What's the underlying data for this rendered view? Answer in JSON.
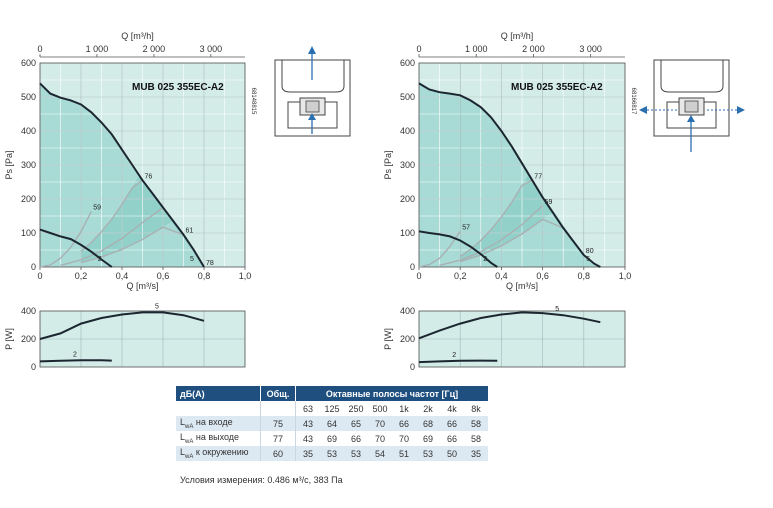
{
  "chart_data": [
    {
      "type": "line",
      "model": "MUB 025 355EC-A2",
      "diagram_code": "68148815",
      "xlabel": "Q [m³/s]",
      "x2label": "Q [m³/h]",
      "ylabel": "Ps [Pa]",
      "xlim": [
        0,
        1.0
      ],
      "ylim": [
        0,
        600
      ],
      "x_ticks": [
        "0",
        "0,2",
        "0,4",
        "0,6",
        "0,8",
        "1,0"
      ],
      "x2_ticks": [
        "0",
        "1 000",
        "2 000",
        "3 000"
      ],
      "y_ticks": [
        "0",
        "100",
        "200",
        "300",
        "400",
        "500",
        "600"
      ],
      "series": [
        {
          "name": "5",
          "x": [
            0,
            0.05,
            0.1,
            0.15,
            0.2,
            0.25,
            0.3,
            0.35,
            0.4,
            0.45,
            0.5,
            0.55,
            0.6,
            0.65,
            0.7,
            0.75,
            0.8
          ],
          "y": [
            540,
            510,
            498,
            490,
            478,
            455,
            425,
            390,
            345,
            300,
            255,
            215,
            175,
            135,
            95,
            50,
            0
          ]
        },
        {
          "name": "2",
          "x": [
            0,
            0.05,
            0.1,
            0.15,
            0.2,
            0.25,
            0.3,
            0.35
          ],
          "y": [
            110,
            100,
            90,
            82,
            65,
            45,
            22,
            0
          ]
        }
      ],
      "efficiency_lines": [
        {
          "label": "59",
          "x": [
            0,
            0.05,
            0.1,
            0.15,
            0.2,
            0.25
          ],
          "y": [
            0,
            6,
            26,
            58,
            104,
            163
          ]
        },
        {
          "label": "76",
          "x": [
            0.2,
            0.25,
            0.3,
            0.35,
            0.4,
            0.45,
            0.5
          ],
          "y": [
            46,
            72,
            104,
            141,
            184,
            233,
            288
          ]
        },
        {
          "label": "61",
          "x": [
            0.1,
            0.2,
            0.3,
            0.4,
            0.5,
            0.6,
            0.7
          ],
          "y": [
            5,
            21,
            47,
            84,
            131,
            189,
            257
          ]
        },
        {
          "label": "78",
          "x": [
            0.2,
            0.3,
            0.4,
            0.5,
            0.6,
            0.7,
            0.8
          ],
          "y": [
            13,
            29,
            52,
            81,
            117,
            159,
            208
          ]
        }
      ],
      "power": {
        "ylabel": "P [W]",
        "ylim": [
          0,
          400
        ],
        "y_ticks": [
          "0",
          "200",
          "400"
        ],
        "series": [
          {
            "name": "5",
            "x": [
              0,
              0.1,
              0.2,
              0.3,
              0.4,
              0.5,
              0.6,
              0.7,
              0.8
            ],
            "y": [
              200,
              240,
              310,
              350,
              375,
              390,
              390,
              370,
              330
            ]
          },
          {
            "name": "2",
            "x": [
              0,
              0.1,
              0.2,
              0.3,
              0.35
            ],
            "y": [
              40,
              44,
              48,
              48,
              46
            ]
          }
        ]
      }
    },
    {
      "type": "line",
      "model": "MUB 025 355EC-A2",
      "diagram_code": "68166817",
      "xlabel": "Q [m³/s]",
      "x2label": "Q [m³/h]",
      "ylabel": "Ps [Pa]",
      "xlim": [
        0,
        1.0
      ],
      "ylim": [
        0,
        600
      ],
      "x_ticks": [
        "0",
        "0,2",
        "0,4",
        "0,6",
        "0,8",
        "1,0"
      ],
      "x2_ticks": [
        "0",
        "1 000",
        "2 000",
        "3 000"
      ],
      "y_ticks": [
        "0",
        "100",
        "200",
        "300",
        "400",
        "500",
        "600"
      ],
      "series": [
        {
          "name": "5",
          "x": [
            0,
            0.05,
            0.1,
            0.15,
            0.2,
            0.25,
            0.3,
            0.35,
            0.4,
            0.45,
            0.5,
            0.55,
            0.6,
            0.65,
            0.7,
            0.75,
            0.8,
            0.85,
            0.88
          ],
          "y": [
            540,
            522,
            514,
            510,
            505,
            490,
            470,
            440,
            400,
            355,
            305,
            255,
            205,
            160,
            115,
            75,
            35,
            10,
            0
          ]
        },
        {
          "name": "2",
          "x": [
            0,
            0.05,
            0.1,
            0.15,
            0.2,
            0.25,
            0.3,
            0.35,
            0.38
          ],
          "y": [
            105,
            100,
            96,
            90,
            78,
            60,
            38,
            12,
            0
          ]
        }
      ],
      "efficiency_lines": [
        {
          "label": "57",
          "x": [
            0,
            0.05,
            0.1,
            0.15,
            0.2
          ],
          "y": [
            0,
            7,
            26,
            60,
            105
          ]
        },
        {
          "label": "77",
          "x": [
            0.2,
            0.25,
            0.3,
            0.35,
            0.4,
            0.45,
            0.5,
            0.55
          ],
          "y": [
            31,
            52,
            78,
            110,
            147,
            190,
            240,
            296
          ]
        },
        {
          "label": "59",
          "x": [
            0.1,
            0.2,
            0.3,
            0.4,
            0.5,
            0.6
          ],
          "y": [
            5,
            20,
            45,
            80,
            125,
            180
          ]
        },
        {
          "label": "80",
          "x": [
            0.2,
            0.3,
            0.4,
            0.5,
            0.6,
            0.7,
            0.8
          ],
          "y": [
            16,
            35,
            62,
            97,
            140,
            190,
            248
          ]
        }
      ],
      "power": {
        "ylabel": "P [W]",
        "ylim": [
          0,
          400
        ],
        "y_ticks": [
          "0",
          "200",
          "400"
        ],
        "series": [
          {
            "name": "5",
            "x": [
              0,
              0.1,
              0.2,
              0.3,
              0.4,
              0.5,
              0.6,
              0.7,
              0.8,
              0.88
            ],
            "y": [
              205,
              260,
              310,
              350,
              375,
              390,
              385,
              370,
              345,
              320
            ]
          },
          {
            "name": "2",
            "x": [
              0,
              0.1,
              0.2,
              0.3,
              0.38
            ],
            "y": [
              35,
              40,
              44,
              46,
              44
            ]
          }
        ]
      }
    }
  ],
  "sound_table": {
    "header_first": "дБ(А)",
    "header_total": "Общ.",
    "header_bands": "Октавные полосы частот [Гц]",
    "bands": [
      "63",
      "125",
      "250",
      "500",
      "1k",
      "2k",
      "4k",
      "8k"
    ],
    "rows": [
      {
        "prefix": "L",
        "sub": "wA",
        "label": " на входе",
        "total": "75",
        "values": [
          "43",
          "64",
          "65",
          "70",
          "66",
          "68",
          "66",
          "58"
        ]
      },
      {
        "prefix": "L",
        "sub": "wA",
        "label": " на выходе",
        "total": "77",
        "values": [
          "43",
          "69",
          "66",
          "70",
          "70",
          "69",
          "66",
          "58"
        ]
      },
      {
        "prefix": "L",
        "sub": "wA",
        "label": " к окружению",
        "total": "60",
        "values": [
          "35",
          "53",
          "53",
          "54",
          "51",
          "53",
          "50",
          "35"
        ]
      }
    ],
    "note": "Условия измерения: 0.486 м³/с, 383 Па"
  },
  "colors": {
    "area_light": "#d3ece8",
    "area_mid": "#a8dbd5",
    "area_dark": "#80c8c0",
    "curve_dark": "#1c2630",
    "curve_eff": "#a9b0b3",
    "arrow": "#2a6fb0",
    "table_header": "#1f4f7f"
  },
  "icons": [
    "airflow-up-icon",
    "airflow-sideways-icon"
  ]
}
